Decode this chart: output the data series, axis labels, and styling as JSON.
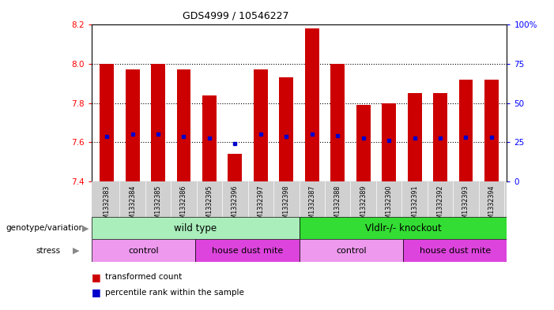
{
  "title": "GDS4999 / 10546227",
  "samples": [
    "GSM1332383",
    "GSM1332384",
    "GSM1332385",
    "GSM1332386",
    "GSM1332395",
    "GSM1332396",
    "GSM1332397",
    "GSM1332398",
    "GSM1332387",
    "GSM1332388",
    "GSM1332389",
    "GSM1332390",
    "GSM1332391",
    "GSM1332392",
    "GSM1332393",
    "GSM1332394"
  ],
  "bar_bottom": 7.4,
  "transformed_counts": [
    8.0,
    7.97,
    8.0,
    7.97,
    7.84,
    7.54,
    7.97,
    7.93,
    8.18,
    8.0,
    7.79,
    7.8,
    7.85,
    7.85,
    7.92,
    7.92
  ],
  "percentile_values": [
    7.63,
    7.64,
    7.64,
    7.63,
    7.62,
    7.595,
    7.64,
    7.63,
    7.64,
    7.635,
    7.62,
    7.61,
    7.62,
    7.62,
    7.625,
    7.625
  ],
  "ylim": [
    7.4,
    8.2
  ],
  "yticks": [
    7.4,
    7.6,
    7.8,
    8.0,
    8.2
  ],
  "bar_color": "#cc0000",
  "percentile_color": "#0000cc",
  "genotype_wildtype_color": "#aaeebb",
  "genotype_knockout_color": "#33dd33",
  "stress_control_color": "#ee99ee",
  "stress_hdm_color": "#dd44dd",
  "genotype_labels": [
    "wild type",
    "Vldlr-/- knockout"
  ],
  "stress_labels": [
    "control",
    "house dust mite",
    "control",
    "house dust mite"
  ],
  "legend_bar": "transformed count",
  "legend_pct": "percentile rank within the sample"
}
